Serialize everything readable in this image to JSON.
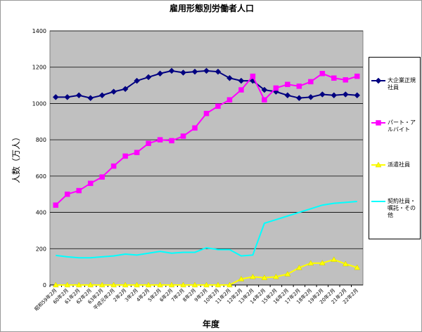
{
  "chart_data": {
    "type": "line",
    "title": "雇用形態別労働者人口",
    "x_label": "年度",
    "y_label": "人数（万人）",
    "categories": [
      "昭和59年2月",
      "60年2月",
      "61年2月",
      "62年2月",
      "63年2月",
      "平成元年2月",
      "2年2月",
      "3年2月",
      "4年2月",
      "5年2月",
      "6年2月",
      "7年2月",
      "8年2月",
      "9年2月",
      "10年2月",
      "11年2月",
      "12年2月",
      "13年2月",
      "14年2月",
      "15年2月",
      "16年2月",
      "17年2月",
      "18年2月",
      "19年2月",
      "20年2月",
      "21年2月",
      "22年2月"
    ],
    "series": [
      {
        "name": "大企業正規社員",
        "color": "#000080",
        "marker": "diamond",
        "values": [
          1035,
          1035,
          1045,
          1030,
          1045,
          1065,
          1080,
          1125,
          1145,
          1165,
          1180,
          1170,
          1175,
          1180,
          1175,
          1140,
          1125,
          1125,
          1075,
          1065,
          1045,
          1030,
          1035,
          1050,
          1045,
          1050,
          1045
        ]
      },
      {
        "name": "パート・アルバイト",
        "color": "#ff00ff",
        "marker": "square",
        "values": [
          440,
          500,
          520,
          560,
          595,
          655,
          710,
          730,
          780,
          800,
          795,
          820,
          865,
          945,
          985,
          1020,
          1075,
          1150,
          1020,
          1085,
          1105,
          1095,
          1120,
          1165,
          1140,
          1130,
          1150
        ]
      },
      {
        "name": "派遣社員",
        "color": "#ffff00",
        "marker": "triangle",
        "values": [
          0,
          0,
          0,
          0,
          0,
          0,
          0,
          0,
          0,
          0,
          0,
          0,
          0,
          0,
          0,
          0,
          33,
          45,
          40,
          45,
          60,
          95,
          120,
          121,
          140,
          116,
          96
        ]
      },
      {
        "name": "契約社員・嘱託・その他",
        "color": "#00ffff",
        "marker": "none",
        "values": [
          163,
          155,
          150,
          150,
          155,
          160,
          170,
          165,
          175,
          185,
          175,
          180,
          180,
          205,
          195,
          195,
          160,
          165,
          340,
          360,
          380,
          400,
          420,
          440,
          450,
          455,
          460
        ]
      }
    ],
    "ylim": [
      0,
      1400
    ],
    "yticks": [
      0,
      200,
      400,
      600,
      800,
      1000,
      1200,
      1400
    ],
    "grid": true,
    "plot_background": "#c0c0c0",
    "legend": "right"
  }
}
